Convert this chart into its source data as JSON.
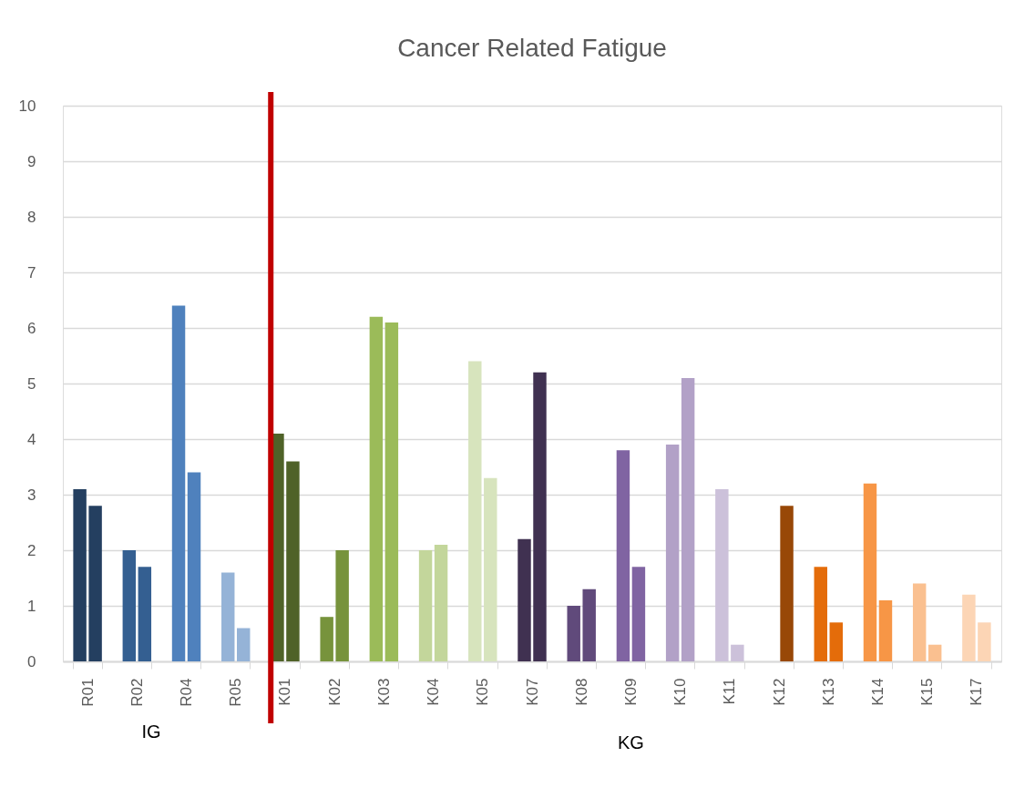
{
  "chart_data": {
    "type": "bar",
    "title": "Cancer Related Fatigue",
    "categories": [
      "R01",
      "R02",
      "R04",
      "R05",
      "K01",
      "K02",
      "K03",
      "K04",
      "K05",
      "K07",
      "K08",
      "K09",
      "K10",
      "K11",
      "K12",
      "K13",
      "K14",
      "K15",
      "K17"
    ],
    "series": [
      {
        "colors": [
          "#243f60",
          "#345f91",
          "#4f81bd",
          "#95b3d7",
          "#4f6228",
          "#77933c",
          "#9bbb59",
          "#c3d69b",
          "#d7e4bd",
          "#403151",
          "#604a7b",
          "#8064a2",
          "#b2a1c7",
          "#ccc1da",
          "#984807",
          "#e46c0a",
          "#f79646",
          "#fac090",
          "#fcd5b5"
        ],
        "values": [
          3.1,
          2.0,
          6.4,
          1.6,
          4.1,
          0.8,
          6.2,
          2.0,
          5.4,
          2.2,
          1.0,
          3.8,
          3.9,
          3.1,
          null,
          1.7,
          3.2,
          1.4,
          1.2
        ]
      },
      {
        "colors": [
          "#243f60",
          "#345f91",
          "#4f81bd",
          "#95b3d7",
          "#4f6228",
          "#77933c",
          "#9bbb59",
          "#c3d69b",
          "#d7e4bd",
          "#403151",
          "#604a7b",
          "#8064a2",
          "#b2a1c7",
          "#ccc1da",
          "#984807",
          "#e46c0a",
          "#f79646",
          "#fac090",
          "#fcd5b5"
        ],
        "values": [
          2.8,
          1.7,
          3.4,
          0.6,
          3.6,
          2.0,
          6.1,
          2.1,
          3.3,
          5.2,
          1.3,
          1.7,
          5.1,
          0.3,
          2.8,
          0.7,
          1.1,
          0.3,
          0.7
        ]
      }
    ],
    "ylim": [
      0,
      10
    ],
    "yticks": [
      0,
      1,
      2,
      3,
      4,
      5,
      6,
      7,
      8,
      9,
      10
    ],
    "grid": "y",
    "ref_lines": [
      {
        "axis": "x",
        "value": "K01",
        "color": "#c00000"
      }
    ],
    "annotations": [
      "IG",
      "KG"
    ]
  }
}
